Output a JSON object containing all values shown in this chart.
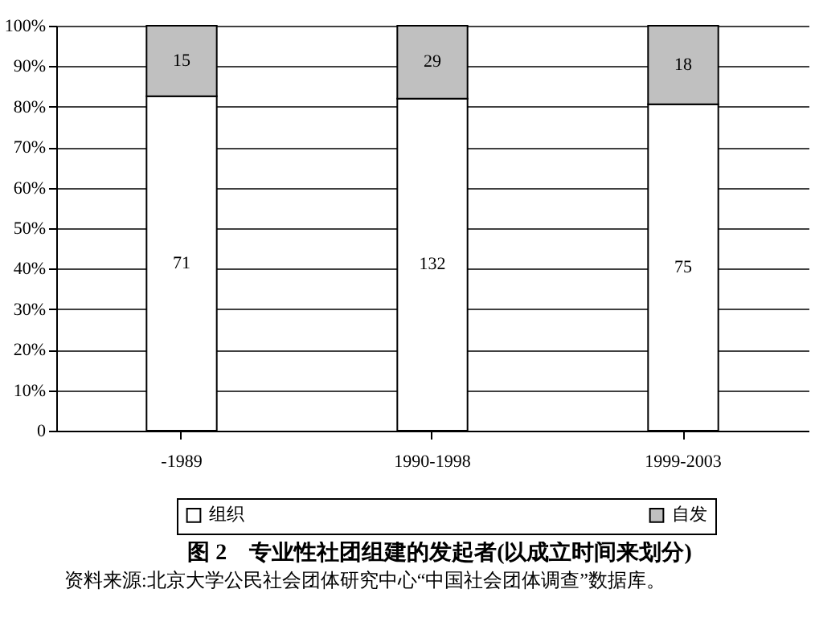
{
  "chart_data": {
    "type": "bar",
    "stacked": true,
    "title": "图 2　专业性社团组建的发起者(以成立时间来划分)",
    "annotations": [
      "资料来源:北京大学公民社会团体研究中心“中国社会团体调查”数据库。",
      "71",
      "132",
      "75",
      "15",
      "29",
      "18"
    ],
    "categories": [
      "-1989",
      "1990-1998",
      "1999-2003"
    ],
    "series": [
      {
        "name": "组织",
        "color": "#ffffff",
        "values": [
          82.6,
          82.0,
          80.6
        ]
      },
      {
        "name": "自发",
        "color": "#c0c0c0",
        "values": [
          17.4,
          18.0,
          19.4
        ]
      }
    ],
    "ylim": [
      0,
      100
    ],
    "yticks": [
      {
        "value": 0,
        "label": "0"
      },
      {
        "value": 10,
        "label": "10%"
      },
      {
        "value": 20,
        "label": "20%"
      },
      {
        "value": 30,
        "label": "30%"
      },
      {
        "value": 40,
        "label": "40%"
      },
      {
        "value": 50,
        "label": "50%"
      },
      {
        "value": 60,
        "label": "60%"
      },
      {
        "value": 70,
        "label": "70%"
      },
      {
        "value": 80,
        "label": "80%"
      },
      {
        "value": 90,
        "label": "90%"
      },
      {
        "value": 100,
        "label": "100%"
      }
    ],
    "grid": "y",
    "legend": "bottom"
  }
}
